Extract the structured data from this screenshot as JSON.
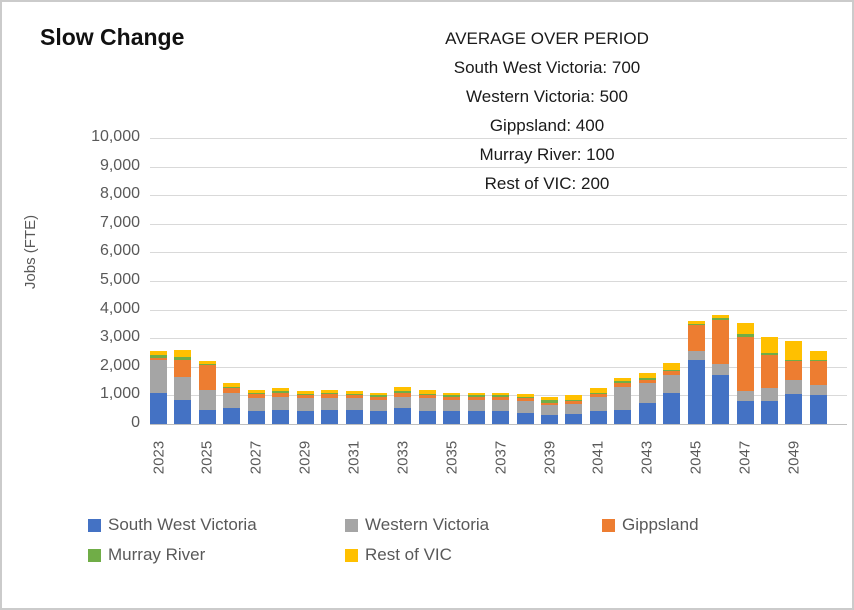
{
  "title": "Slow Change",
  "annotation": {
    "lines": [
      "AVERAGE OVER PERIOD",
      "South West Victoria: 700",
      "Western Victoria: 500",
      "Gippsland: 400",
      "Murray River: 100",
      "Rest of VIC: 200"
    ]
  },
  "chart_data": {
    "type": "bar",
    "stacked": true,
    "title": "Slow Change",
    "ylabel": "Jobs (FTE)",
    "xlabel": "",
    "ylim": [
      0,
      10000
    ],
    "y_tick_step": 1000,
    "grid": "horizontal",
    "legend_position": "bottom",
    "y_ticks": [
      "10,000",
      "9,000",
      "8,000",
      "7,000",
      "6,000",
      "5,000",
      "4,000",
      "3,000",
      "2,000",
      "1,000",
      "0"
    ],
    "categories": [
      2023,
      2024,
      2025,
      2026,
      2027,
      2028,
      2029,
      2030,
      2031,
      2032,
      2033,
      2034,
      2035,
      2036,
      2037,
      2038,
      2039,
      2040,
      2041,
      2042,
      2043,
      2044,
      2045,
      2046,
      2047,
      2048,
      2049,
      2050
    ],
    "x_tick_labels": [
      "2023",
      "2025",
      "2027",
      "2029",
      "2031",
      "2033",
      "2035",
      "2037",
      "2039",
      "2041",
      "2043",
      "2045",
      "2047",
      "2049"
    ],
    "series": [
      {
        "name": "South West Victoria",
        "color": "#4472C4",
        "values": [
          1100,
          850,
          500,
          550,
          450,
          500,
          450,
          500,
          500,
          450,
          550,
          450,
          450,
          450,
          450,
          400,
          300,
          350,
          450,
          500,
          750,
          1100,
          2250,
          1700,
          800,
          800,
          1050,
          1000
        ]
      },
      {
        "name": "Western Victoria",
        "color": "#A5A5A5",
        "values": [
          1150,
          800,
          700,
          550,
          450,
          450,
          450,
          400,
          400,
          400,
          400,
          450,
          400,
          400,
          400,
          400,
          350,
          350,
          500,
          800,
          700,
          600,
          300,
          400,
          350,
          450,
          500,
          350
        ]
      },
      {
        "name": "Gippsland",
        "color": "#ED7D31",
        "values": [
          50,
          600,
          850,
          150,
          150,
          150,
          100,
          150,
          100,
          100,
          150,
          100,
          100,
          100,
          100,
          100,
          100,
          100,
          100,
          150,
          100,
          150,
          900,
          1550,
          1900,
          1150,
          650,
          850
        ]
      },
      {
        "name": "Murray River",
        "color": "#70AD47",
        "values": [
          100,
          100,
          50,
          50,
          50,
          50,
          50,
          50,
          50,
          50,
          50,
          50,
          50,
          50,
          50,
          50,
          100,
          50,
          50,
          50,
          50,
          50,
          50,
          50,
          100,
          100,
          50,
          50
        ]
      },
      {
        "name": "Rest of VIC",
        "color": "#FFC000",
        "values": [
          150,
          250,
          100,
          150,
          100,
          100,
          100,
          100,
          100,
          100,
          150,
          150,
          100,
          100,
          100,
          100,
          100,
          150,
          150,
          100,
          200,
          250,
          100,
          100,
          400,
          550,
          650,
          300
        ]
      }
    ]
  },
  "colors": {
    "gridline": "#D9D9D9",
    "axis_line": "#BFBFBF",
    "axis_text": "#595959",
    "title_text": "#111111",
    "annotation_text": "#1A1A1A"
  }
}
